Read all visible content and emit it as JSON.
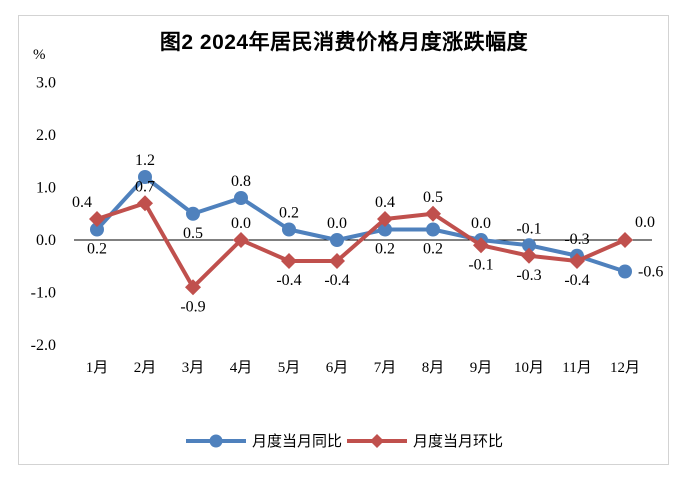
{
  "chart_data": {
    "type": "line",
    "title": "图2 2024年居民消费价格月度涨跌幅度",
    "unit": "%",
    "categories": [
      "1月",
      "2月",
      "3月",
      "4月",
      "5月",
      "6月",
      "7月",
      "8月",
      "9月",
      "10月",
      "11月",
      "12月"
    ],
    "series": [
      {
        "name": "月度当月同比",
        "color": "#4F81BD",
        "marker": "circle",
        "values": [
          0.2,
          1.2,
          0.5,
          0.8,
          0.2,
          0.0,
          0.2,
          0.2,
          0.0,
          -0.1,
          -0.3,
          -0.6
        ],
        "label_positions": [
          "below",
          "above",
          "below",
          "above",
          "above",
          "above",
          "below",
          "below",
          "above",
          "above",
          "above",
          "right"
        ]
      },
      {
        "name": "月度当月环比",
        "color": "#C0504D",
        "marker": "diamond",
        "values": [
          0.4,
          0.7,
          -0.9,
          0.0,
          -0.4,
          -0.4,
          0.4,
          0.5,
          -0.1,
          -0.3,
          -0.4,
          0.0
        ],
        "label_positions": [
          "above-left",
          "above",
          "below",
          "above",
          "below",
          "below",
          "above",
          "above",
          "below",
          "below",
          "below",
          "above-right"
        ]
      }
    ],
    "y_ticks": [
      3.0,
      2.0,
      1.0,
      0.0,
      -1.0,
      -2.0
    ],
    "ylim": [
      -2.0,
      3.0
    ],
    "grid": false,
    "zero_line": true,
    "legend_position": "bottom",
    "label_format": "one_decimal"
  }
}
